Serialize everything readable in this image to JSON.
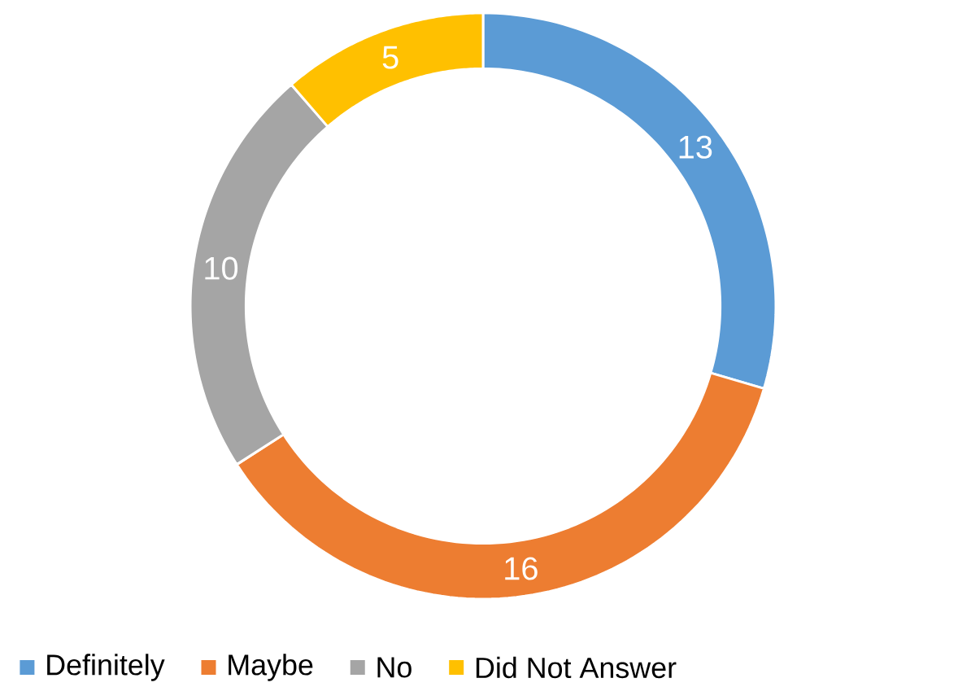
{
  "chart_data": {
    "type": "donut",
    "categories": [
      "Definitely",
      "Maybe",
      "No",
      "Did Not Answer"
    ],
    "values": [
      13,
      16,
      10,
      5
    ],
    "colors": [
      "#5b9bd5",
      "#ed7d31",
      "#a5a5a5",
      "#ffc000"
    ],
    "data_labels": true,
    "legend": "bottom"
  }
}
